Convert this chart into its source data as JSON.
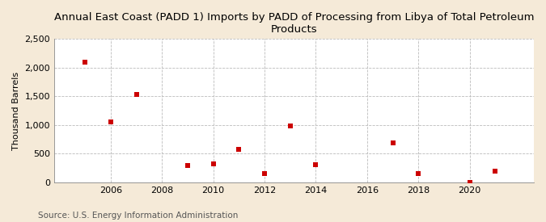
{
  "title": "Annual East Coast (PADD 1) Imports by PADD of Processing from Libya of Total Petroleum\nProducts",
  "ylabel": "Thousand Barrels",
  "source": "Source: U.S. Energy Information Administration",
  "fig_background_color": "#f5ead8",
  "plot_background_color": "#ffffff",
  "marker_color": "#cc0000",
  "marker_size": 5,
  "xlim": [
    2003.8,
    2022.5
  ],
  "ylim": [
    0,
    2500
  ],
  "yticks": [
    0,
    500,
    1000,
    1500,
    2000,
    2500
  ],
  "ytick_labels": [
    "0",
    "500",
    "1,000",
    "1,500",
    "2,000",
    "2,500"
  ],
  "xticks": [
    2006,
    2008,
    2010,
    2012,
    2014,
    2016,
    2018,
    2020
  ],
  "data_x": [
    2005,
    2006,
    2007,
    2009,
    2010,
    2011,
    2012,
    2013,
    2014,
    2017,
    2018,
    2020,
    2021
  ],
  "data_y": [
    2100,
    1050,
    1530,
    300,
    320,
    570,
    150,
    980,
    310,
    690,
    150,
    5,
    190
  ],
  "title_fontsize": 9.5,
  "label_fontsize": 8,
  "tick_fontsize": 8,
  "source_fontsize": 7.5
}
